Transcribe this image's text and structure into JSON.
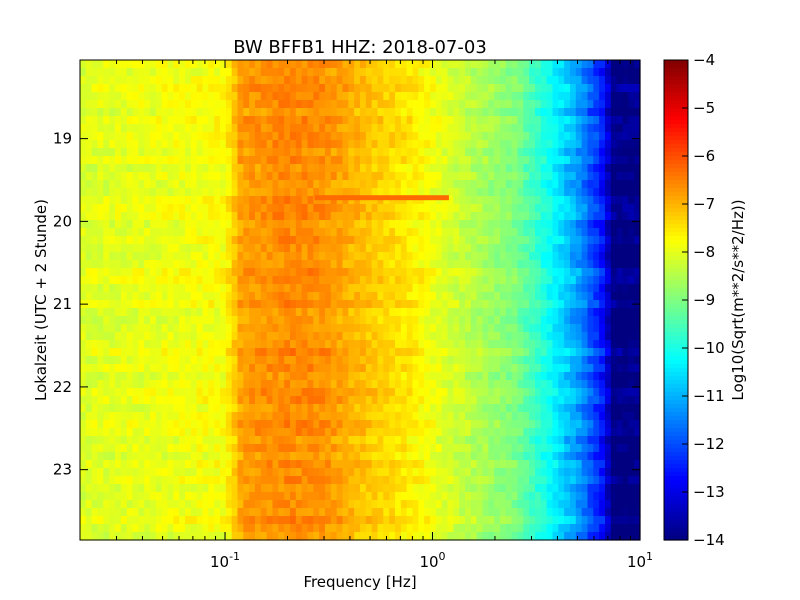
{
  "chart_data": {
    "type": "heatmap",
    "title": "BW BFFB1 HHZ: 2018-07-03",
    "xlabel": "Frequency [Hz]",
    "ylabel": "Lokalzeit (UTC + 2 Stunde)",
    "colorbar_label": "Log10(Sqrt(m**2/s**2/Hz))",
    "x_scale": "log",
    "xlim": [
      0.02,
      10
    ],
    "ylim": [
      18.05,
      23.85
    ],
    "y_inverted": true,
    "x_ticks": [
      {
        "base": "10",
        "exp": "-1",
        "value": 0.1
      },
      {
        "base": "10",
        "exp": "0",
        "value": 1
      },
      {
        "base": "10",
        "exp": "1",
        "value": 10
      }
    ],
    "y_ticks": [
      {
        "label": "19",
        "value": 19
      },
      {
        "label": "20",
        "value": 20
      },
      {
        "label": "21",
        "value": 21
      },
      {
        "label": "22",
        "value": 22
      },
      {
        "label": "23",
        "value": 23
      }
    ],
    "colorbar": {
      "min": -14,
      "max": -4,
      "colormap": "jet",
      "ticks": [
        {
          "label": "−4",
          "value": -4
        },
        {
          "label": "−5",
          "value": -5
        },
        {
          "label": "−6",
          "value": -6
        },
        {
          "label": "−7",
          "value": -7
        },
        {
          "label": "−8",
          "value": -8
        },
        {
          "label": "−9",
          "value": -9
        },
        {
          "label": "−10",
          "value": -10
        },
        {
          "label": "−11",
          "value": -11
        },
        {
          "label": "−12",
          "value": -12
        },
        {
          "label": "−13",
          "value": -13
        },
        {
          "label": "−14",
          "value": -14
        }
      ]
    },
    "spectrum_profile": {
      "description": "approximate mean log10 amplitude vs frequency",
      "freq_hz": [
        0.02,
        0.06,
        0.1,
        0.12,
        0.2,
        0.3,
        0.5,
        0.8,
        1.0,
        1.5,
        2.5,
        3.5,
        5.0,
        6.5,
        7.5,
        10.0
      ],
      "log10_amp": [
        -8.1,
        -7.9,
        -7.8,
        -6.8,
        -6.6,
        -6.7,
        -7.2,
        -7.6,
        -7.9,
        -8.4,
        -9.0,
        -10.0,
        -11.2,
        -12.5,
        -14.0,
        -14.0
      ]
    },
    "event": {
      "time_hour": 19.72,
      "freq_range_hz": [
        0.27,
        1.2
      ],
      "log10_amp": -6.3
    }
  }
}
